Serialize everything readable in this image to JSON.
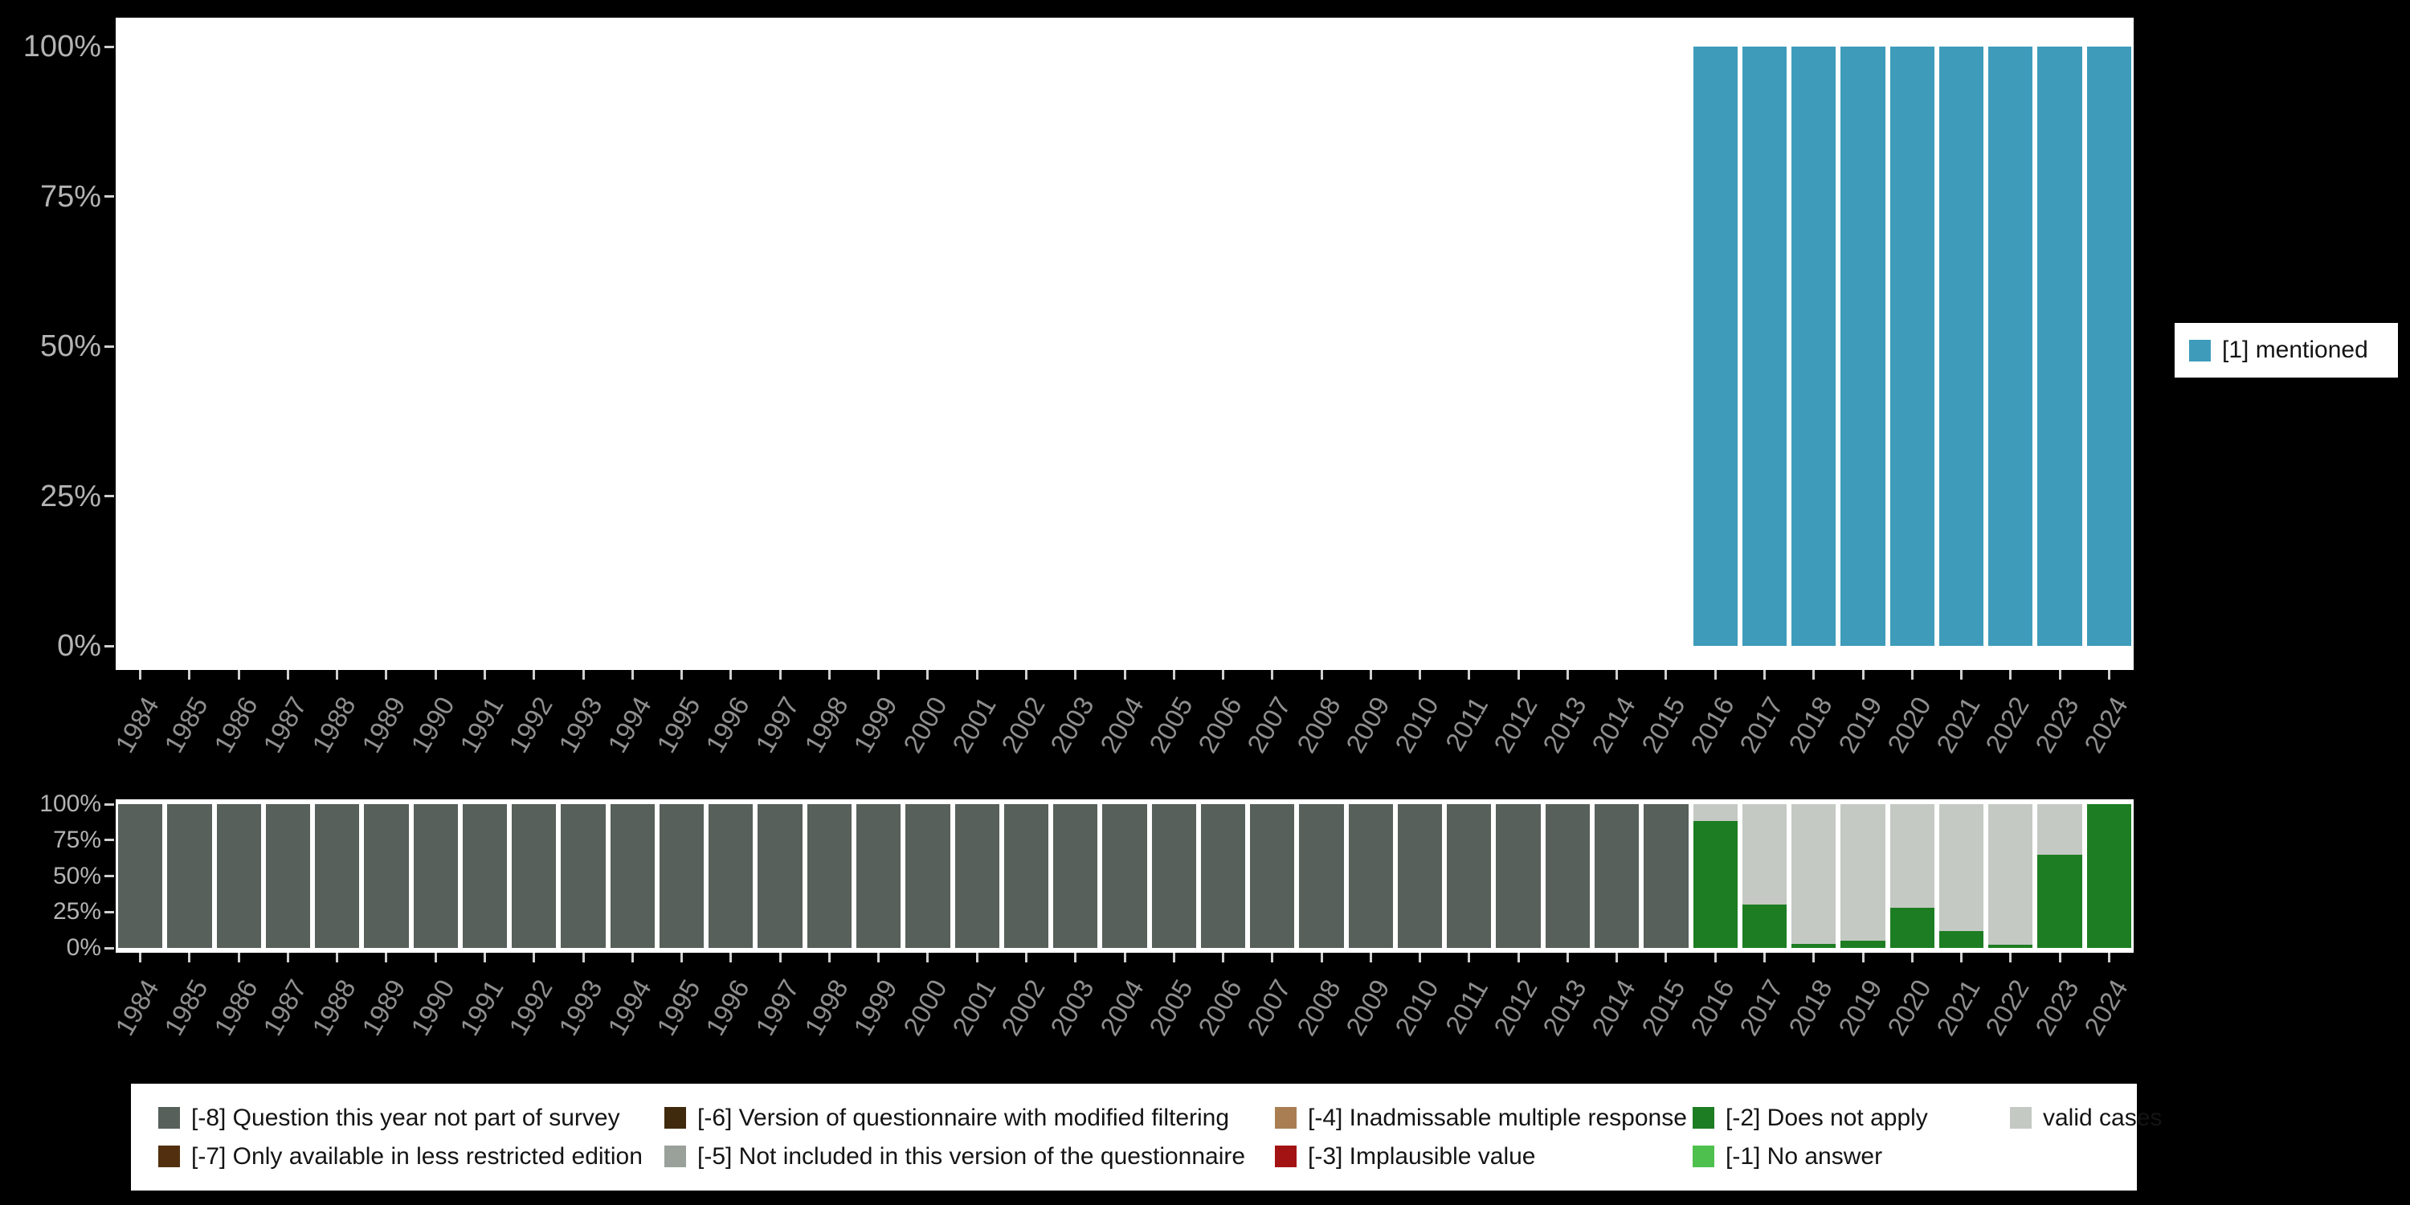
{
  "colors": {
    "mentioned": "#3e9cba",
    "m8": "#57605a",
    "m7": "#52300f",
    "m6": "#402a0e",
    "m5": "#9aa09a",
    "m4": "#a87e52",
    "m3": "#a31313",
    "m2": "#1d7d22",
    "m1": "#4ec04e",
    "valid": "#c4c9c4"
  },
  "chart_data": [
    {
      "type": "bar",
      "title": "",
      "xlabel": "",
      "ylabel": "",
      "x": [
        1984,
        1985,
        1986,
        1987,
        1988,
        1989,
        1990,
        1991,
        1992,
        1993,
        1994,
        1995,
        1996,
        1997,
        1998,
        1999,
        2000,
        2001,
        2002,
        2003,
        2004,
        2005,
        2006,
        2007,
        2008,
        2009,
        2010,
        2011,
        2012,
        2013,
        2014,
        2015,
        2016,
        2017,
        2018,
        2019,
        2020,
        2021,
        2022,
        2023,
        2024
      ],
      "yticks": [
        "0%",
        "25%",
        "50%",
        "75%",
        "100%"
      ],
      "ylim": [
        0,
        100
      ],
      "legend_position": "right",
      "series": [
        {
          "name": "[1] mentioned",
          "color_key": "mentioned",
          "values": [
            0,
            0,
            0,
            0,
            0,
            0,
            0,
            0,
            0,
            0,
            0,
            0,
            0,
            0,
            0,
            0,
            0,
            0,
            0,
            0,
            0,
            0,
            0,
            0,
            0,
            0,
            0,
            0,
            0,
            0,
            0,
            0,
            100,
            100,
            100,
            100,
            100,
            100,
            100,
            100,
            100
          ]
        }
      ]
    },
    {
      "type": "stacked_bar",
      "title": "",
      "xlabel": "",
      "ylabel": "",
      "x": [
        1984,
        1985,
        1986,
        1987,
        1988,
        1989,
        1990,
        1991,
        1992,
        1993,
        1994,
        1995,
        1996,
        1997,
        1998,
        1999,
        2000,
        2001,
        2002,
        2003,
        2004,
        2005,
        2006,
        2007,
        2008,
        2009,
        2010,
        2011,
        2012,
        2013,
        2014,
        2015,
        2016,
        2017,
        2018,
        2019,
        2020,
        2021,
        2022,
        2023,
        2024
      ],
      "yticks": [
        "0%",
        "25%",
        "50%",
        "75%",
        "100%"
      ],
      "ylim": [
        0,
        100
      ],
      "legend_position": "bottom",
      "stacks": [
        [
          [
            "m8",
            100
          ]
        ],
        [
          [
            "m8",
            100
          ]
        ],
        [
          [
            "m8",
            100
          ]
        ],
        [
          [
            "m8",
            100
          ]
        ],
        [
          [
            "m8",
            100
          ]
        ],
        [
          [
            "m8",
            100
          ]
        ],
        [
          [
            "m8",
            100
          ]
        ],
        [
          [
            "m8",
            100
          ]
        ],
        [
          [
            "m8",
            100
          ]
        ],
        [
          [
            "m8",
            100
          ]
        ],
        [
          [
            "m8",
            100
          ]
        ],
        [
          [
            "m8",
            100
          ]
        ],
        [
          [
            "m8",
            100
          ]
        ],
        [
          [
            "m8",
            100
          ]
        ],
        [
          [
            "m8",
            100
          ]
        ],
        [
          [
            "m8",
            100
          ]
        ],
        [
          [
            "m8",
            100
          ]
        ],
        [
          [
            "m8",
            100
          ]
        ],
        [
          [
            "m8",
            100
          ]
        ],
        [
          [
            "m8",
            100
          ]
        ],
        [
          [
            "m8",
            100
          ]
        ],
        [
          [
            "m8",
            100
          ]
        ],
        [
          [
            "m8",
            100
          ]
        ],
        [
          [
            "m8",
            100
          ]
        ],
        [
          [
            "m8",
            100
          ]
        ],
        [
          [
            "m8",
            100
          ]
        ],
        [
          [
            "m8",
            100
          ]
        ],
        [
          [
            "m8",
            100
          ]
        ],
        [
          [
            "m8",
            100
          ]
        ],
        [
          [
            "m8",
            100
          ]
        ],
        [
          [
            "m8",
            100
          ]
        ],
        [
          [
            "m8",
            100
          ]
        ],
        [
          [
            "m2",
            88
          ],
          [
            "valid",
            12
          ]
        ],
        [
          [
            "m2",
            30
          ],
          [
            "valid",
            70
          ]
        ],
        [
          [
            "m2",
            3
          ],
          [
            "valid",
            97
          ]
        ],
        [
          [
            "m2",
            5
          ],
          [
            "valid",
            95
          ]
        ],
        [
          [
            "m2",
            28
          ],
          [
            "valid",
            72
          ]
        ],
        [
          [
            "m2",
            12
          ],
          [
            "valid",
            88
          ]
        ],
        [
          [
            "m2",
            2
          ],
          [
            "valid",
            98
          ]
        ],
        [
          [
            "m2",
            65
          ],
          [
            "valid",
            35
          ]
        ],
        [
          [
            "m2",
            100
          ]
        ]
      ]
    }
  ],
  "legend_right": {
    "items": [
      {
        "label": "[1] mentioned",
        "color_key": "mentioned"
      }
    ]
  },
  "legend_bottom": {
    "rows": [
      [
        {
          "label": "[-8] Question this year not part of survey",
          "color_key": "m8"
        },
        {
          "label": "[-6] Version of questionnaire with modified filtering",
          "color_key": "m6"
        },
        {
          "label": "[-4] Inadmissable multiple response",
          "color_key": "m4"
        },
        {
          "label": "[-2] Does not apply",
          "color_key": "m2"
        },
        {
          "label": "valid cases",
          "color_key": "valid"
        }
      ],
      [
        {
          "label": "[-7] Only available in less restricted edition",
          "color_key": "m7"
        },
        {
          "label": "[-5] Not included in this version of the questionnaire",
          "color_key": "m5"
        },
        {
          "label": "[-3] Implausible value",
          "color_key": "m3"
        },
        {
          "label": "[-1] No answer",
          "color_key": "m1"
        }
      ]
    ]
  }
}
